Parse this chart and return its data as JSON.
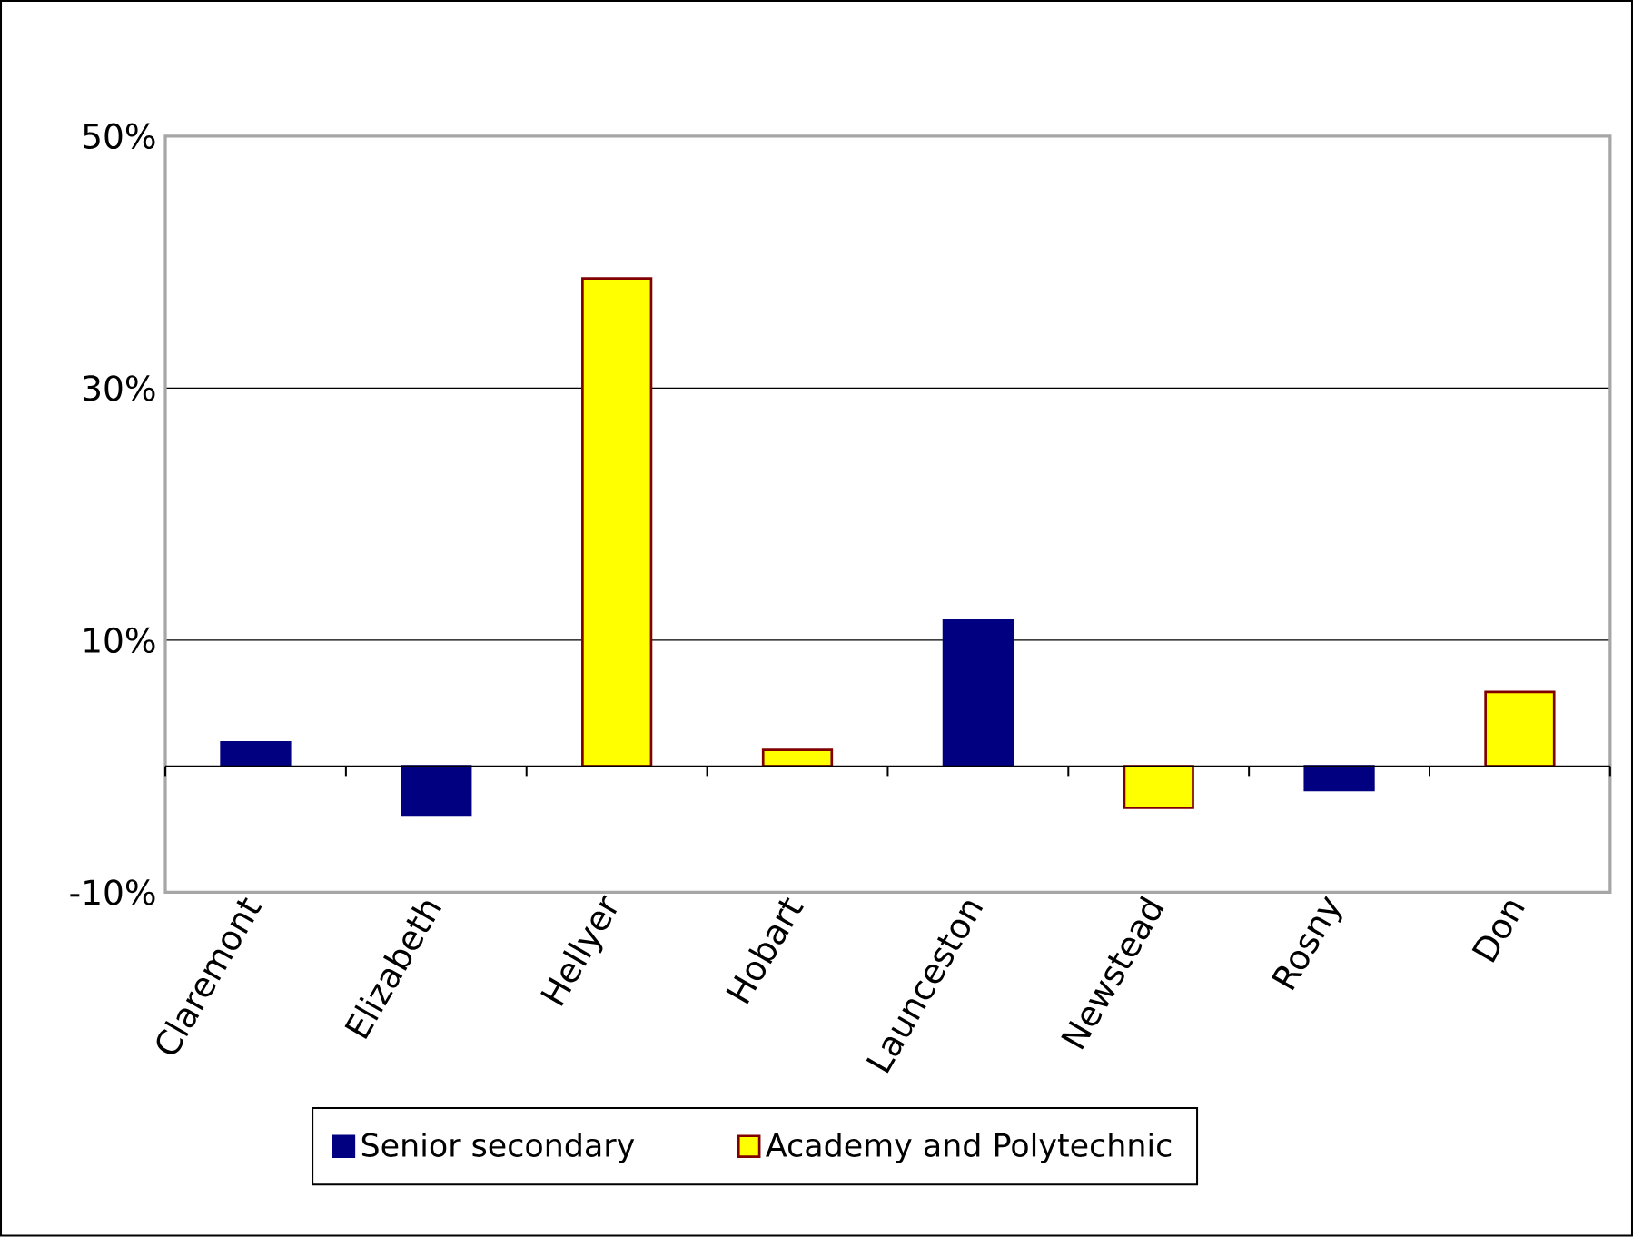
{
  "chart_data": {
    "type": "bar",
    "categories": [
      "Claremont",
      "Elizabeth",
      "Hellyer",
      "Hobart",
      "Launceston",
      "Newstead",
      "Rosny",
      "Don"
    ],
    "series": [
      {
        "name": "Senior secondary",
        "color": "#000080",
        "values": [
          1.9,
          -3.9,
          null,
          null,
          11.6,
          null,
          -1.9,
          null
        ]
      },
      {
        "name": "Academy and Polytechnic",
        "color": "#ffff00",
        "values": [
          null,
          null,
          38.7,
          1.3,
          null,
          -3.3,
          null,
          5.9
        ]
      }
    ],
    "ylim": [
      -10,
      50
    ],
    "yticks": [
      {
        "value": -10,
        "label": "-10%"
      },
      {
        "value": 10,
        "label": "10%"
      },
      {
        "value": 30,
        "label": "30%"
      },
      {
        "value": 50,
        "label": "50%"
      }
    ],
    "grid": "y",
    "legend": "bottom"
  }
}
